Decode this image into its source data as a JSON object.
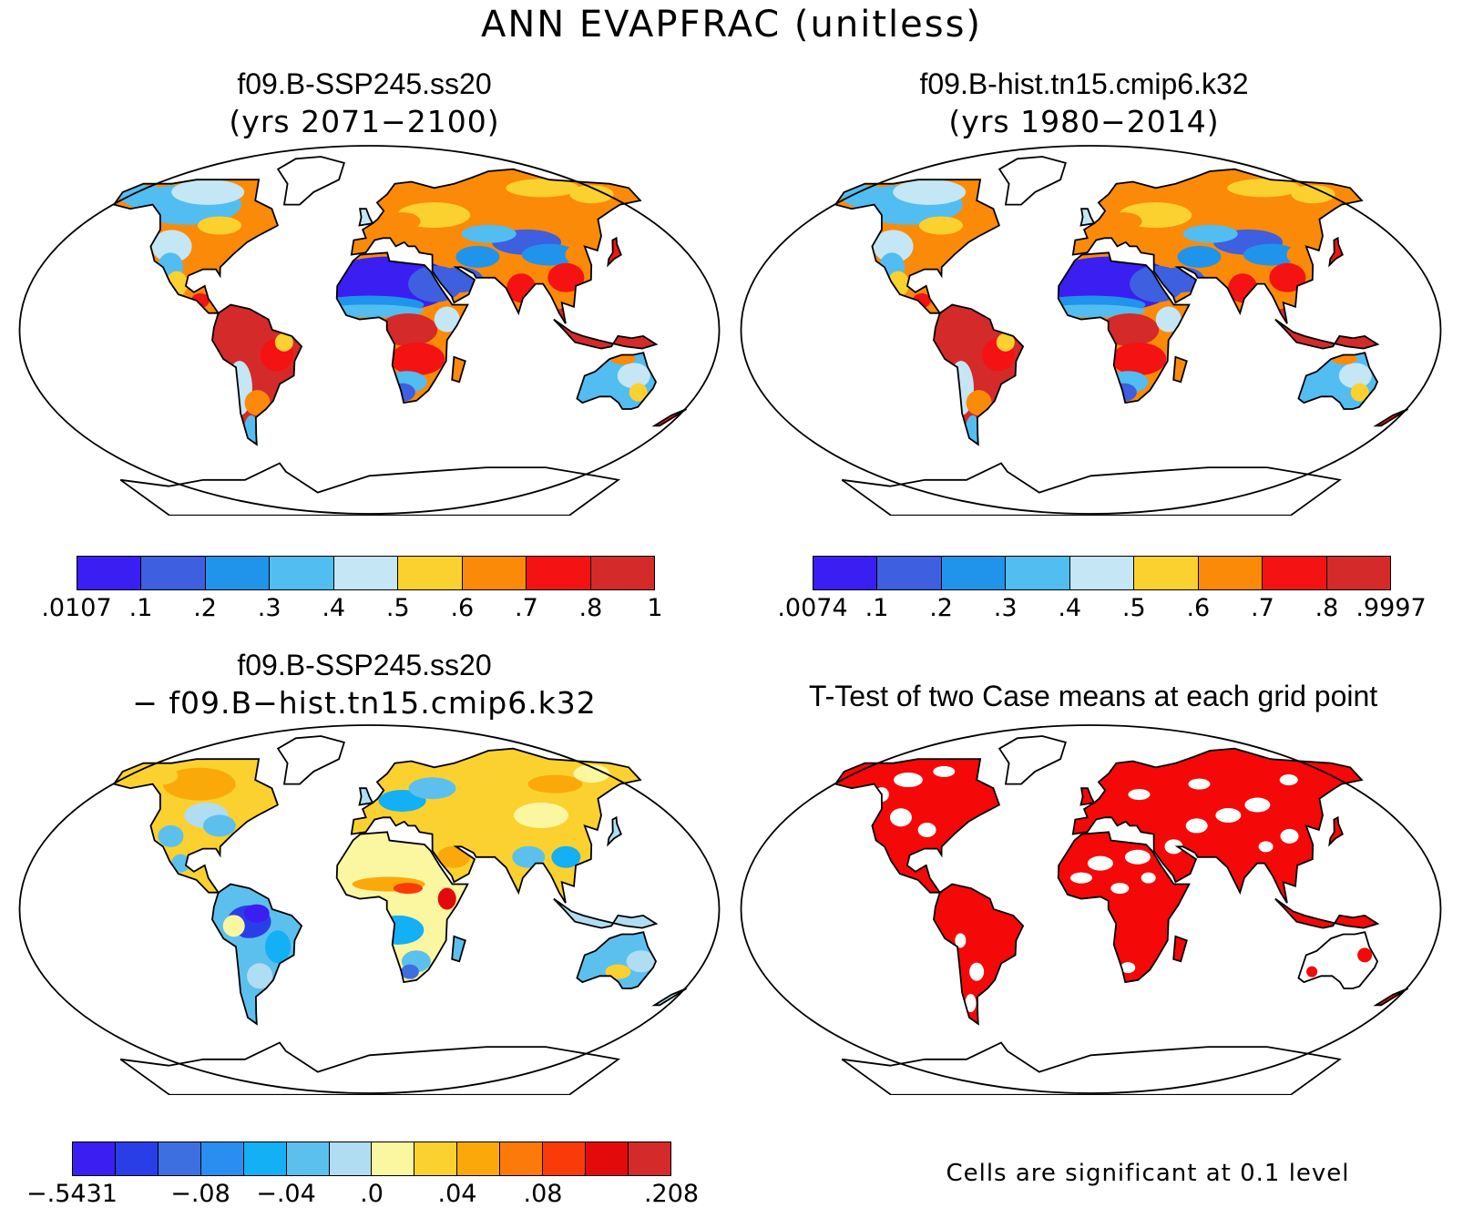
{
  "figure": {
    "title": "ANN EVAPFRAC (unitless)"
  },
  "panels": [
    {
      "id": "case1",
      "title": "f09.B-SSP245.ss20",
      "subtitle": "(yrs 2071−2100)",
      "colorbar": {
        "colors": [
          "#3b1ef2",
          "#3d5fe0",
          "#2094ea",
          "#52bdf0",
          "#c4e6f5",
          "#fbd130",
          "#fb8a08",
          "#f51212",
          "#d42a2a"
        ],
        "labels": [
          ".0107",
          ".1",
          ".2",
          ".3",
          ".4",
          ".5",
          ".6",
          ".7",
          ".8",
          "1"
        ]
      }
    },
    {
      "id": "case2",
      "title": "f09.B-hist.tn15.cmip6.k32",
      "subtitle": "(yrs 1980−2014)",
      "colorbar": {
        "colors": [
          "#3b1ef2",
          "#3d5fe0",
          "#2094ea",
          "#52bdf0",
          "#c4e6f5",
          "#fbd130",
          "#fb8a08",
          "#f51212",
          "#d42a2a"
        ],
        "labels": [
          ".0074",
          ".1",
          ".2",
          ".3",
          ".4",
          ".5",
          ".6",
          ".7",
          ".8",
          ".9997"
        ]
      }
    },
    {
      "id": "diff",
      "title": "f09.B-SSP245.ss20",
      "subtitle": "− f09.B−hist.tn15.cmip6.k32",
      "colorbar": {
        "colors": [
          "#3b1ef2",
          "#2a3ee8",
          "#3d6fe0",
          "#2a8ef0",
          "#14b0f5",
          "#5cc0ee",
          "#b0ddf2",
          "#fbf6a0",
          "#fbd130",
          "#fba90a",
          "#fb7a0a",
          "#fb3a0a",
          "#e20a0a",
          "#d42a2a"
        ],
        "labels": [
          "−.5431",
          "−.08",
          "−.04",
          ".0",
          ".04",
          ".08",
          ".208"
        ]
      }
    },
    {
      "id": "ttest",
      "title": "T-Test of two Case means at each grid point",
      "note": "Cells are significant at 0.1 level"
    }
  ]
}
